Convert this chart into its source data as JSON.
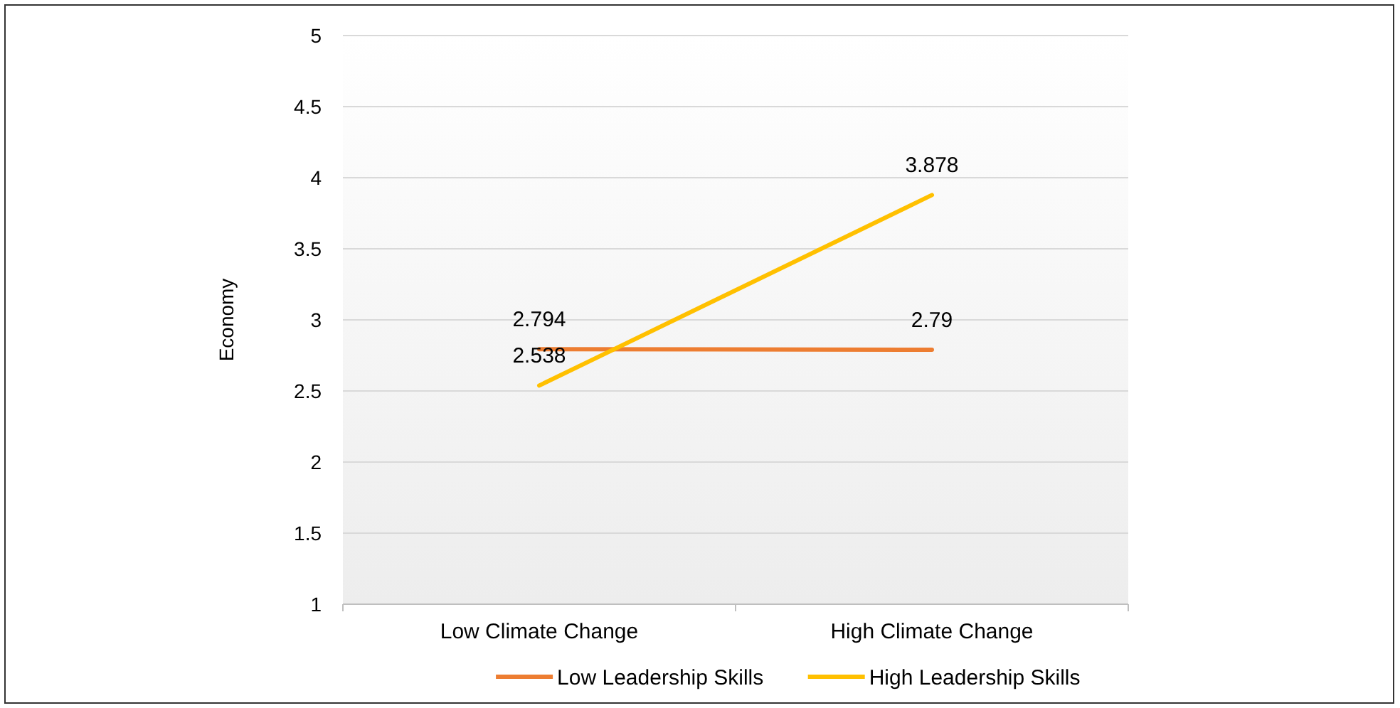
{
  "chart_data": {
    "type": "line",
    "ylabel": "Economy",
    "categories": [
      "Low Climate Change",
      "High Climate Change"
    ],
    "series": [
      {
        "name": "Low Leadership Skills",
        "color": "#ed7d31",
        "values": [
          2.794,
          2.79
        ]
      },
      {
        "name": "High Leadership Skills",
        "color": "#ffc000",
        "values": [
          2.538,
          3.878
        ]
      }
    ],
    "ylim": [
      1,
      5
    ],
    "yticks": [
      1,
      1.5,
      2,
      2.5,
      3,
      3.5,
      4,
      4.5,
      5
    ],
    "grid": "y",
    "legend": "bottom",
    "data_labels": true,
    "marker": "none",
    "line_style": "solid"
  }
}
